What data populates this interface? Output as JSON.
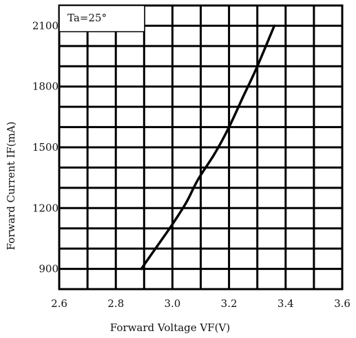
{
  "chart_data": {
    "type": "line",
    "annotation": "Ta=25°",
    "xlabel": "Forward Voltage VF(V)",
    "ylabel": "Forward Current IF(mA)",
    "xlim": [
      2.6,
      3.6
    ],
    "ylim": [
      800,
      2200
    ],
    "x_ticks": [
      2.6,
      2.8,
      3.0,
      3.2,
      3.4,
      3.6
    ],
    "x_tick_labels": [
      "2.6",
      "2.8",
      "3.0",
      "3.2",
      "3.4",
      "3.6"
    ],
    "y_ticks": [
      900,
      1200,
      1500,
      1800,
      2100
    ],
    "y_tick_labels": [
      "900",
      "1200",
      "1500",
      "1800",
      "2100"
    ],
    "x_grid_step": 0.1,
    "y_grid_step": 100,
    "grid": true,
    "series": [
      {
        "x": [
          2.89,
          2.95,
          3.0,
          3.05,
          3.09,
          3.15,
          3.2,
          3.25,
          3.3,
          3.36
        ],
        "y": [
          900,
          1020,
          1120,
          1230,
          1340,
          1470,
          1600,
          1750,
          1900,
          2100
        ]
      }
    ],
    "colors": {
      "line": "#000000",
      "grid": "#000000",
      "background": "#ffffff"
    }
  }
}
